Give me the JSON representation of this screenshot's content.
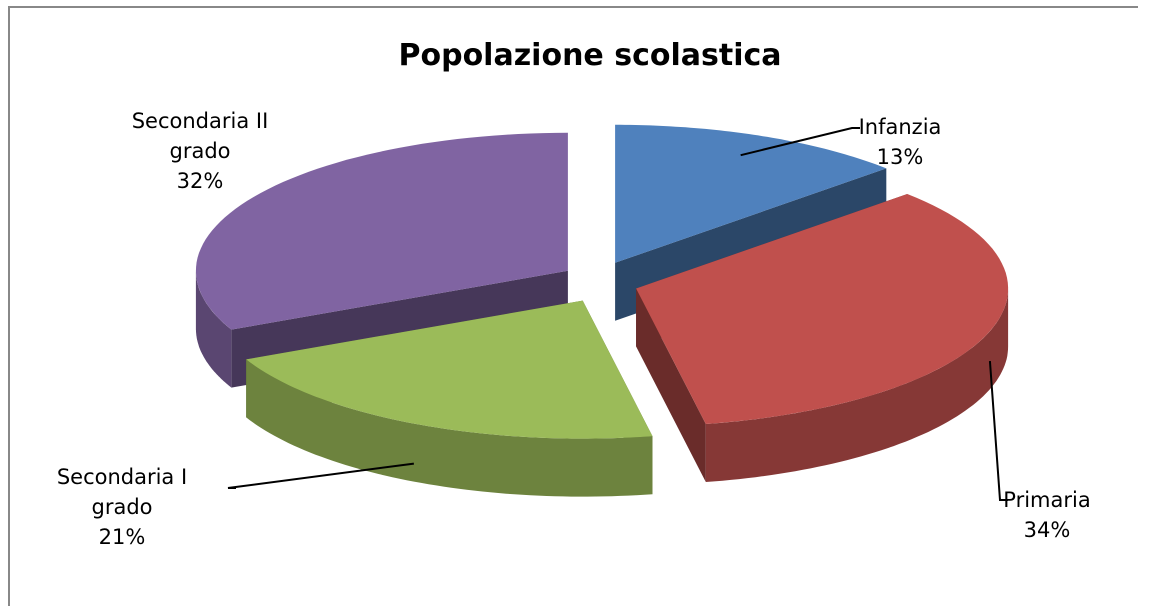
{
  "chart_data": {
    "type": "pie",
    "title": "Popolazione scolastica",
    "categories": [
      "Infanzia",
      "Primaria",
      "Secondaria I grado",
      "Secondaria II grado"
    ],
    "values": [
      13,
      34,
      21,
      32
    ],
    "value_labels": [
      "13%",
      "34%",
      "21%",
      "32%"
    ],
    "colors": [
      "#4f81bd",
      "#c0504d",
      "#9bbb59",
      "#8064a2"
    ]
  }
}
